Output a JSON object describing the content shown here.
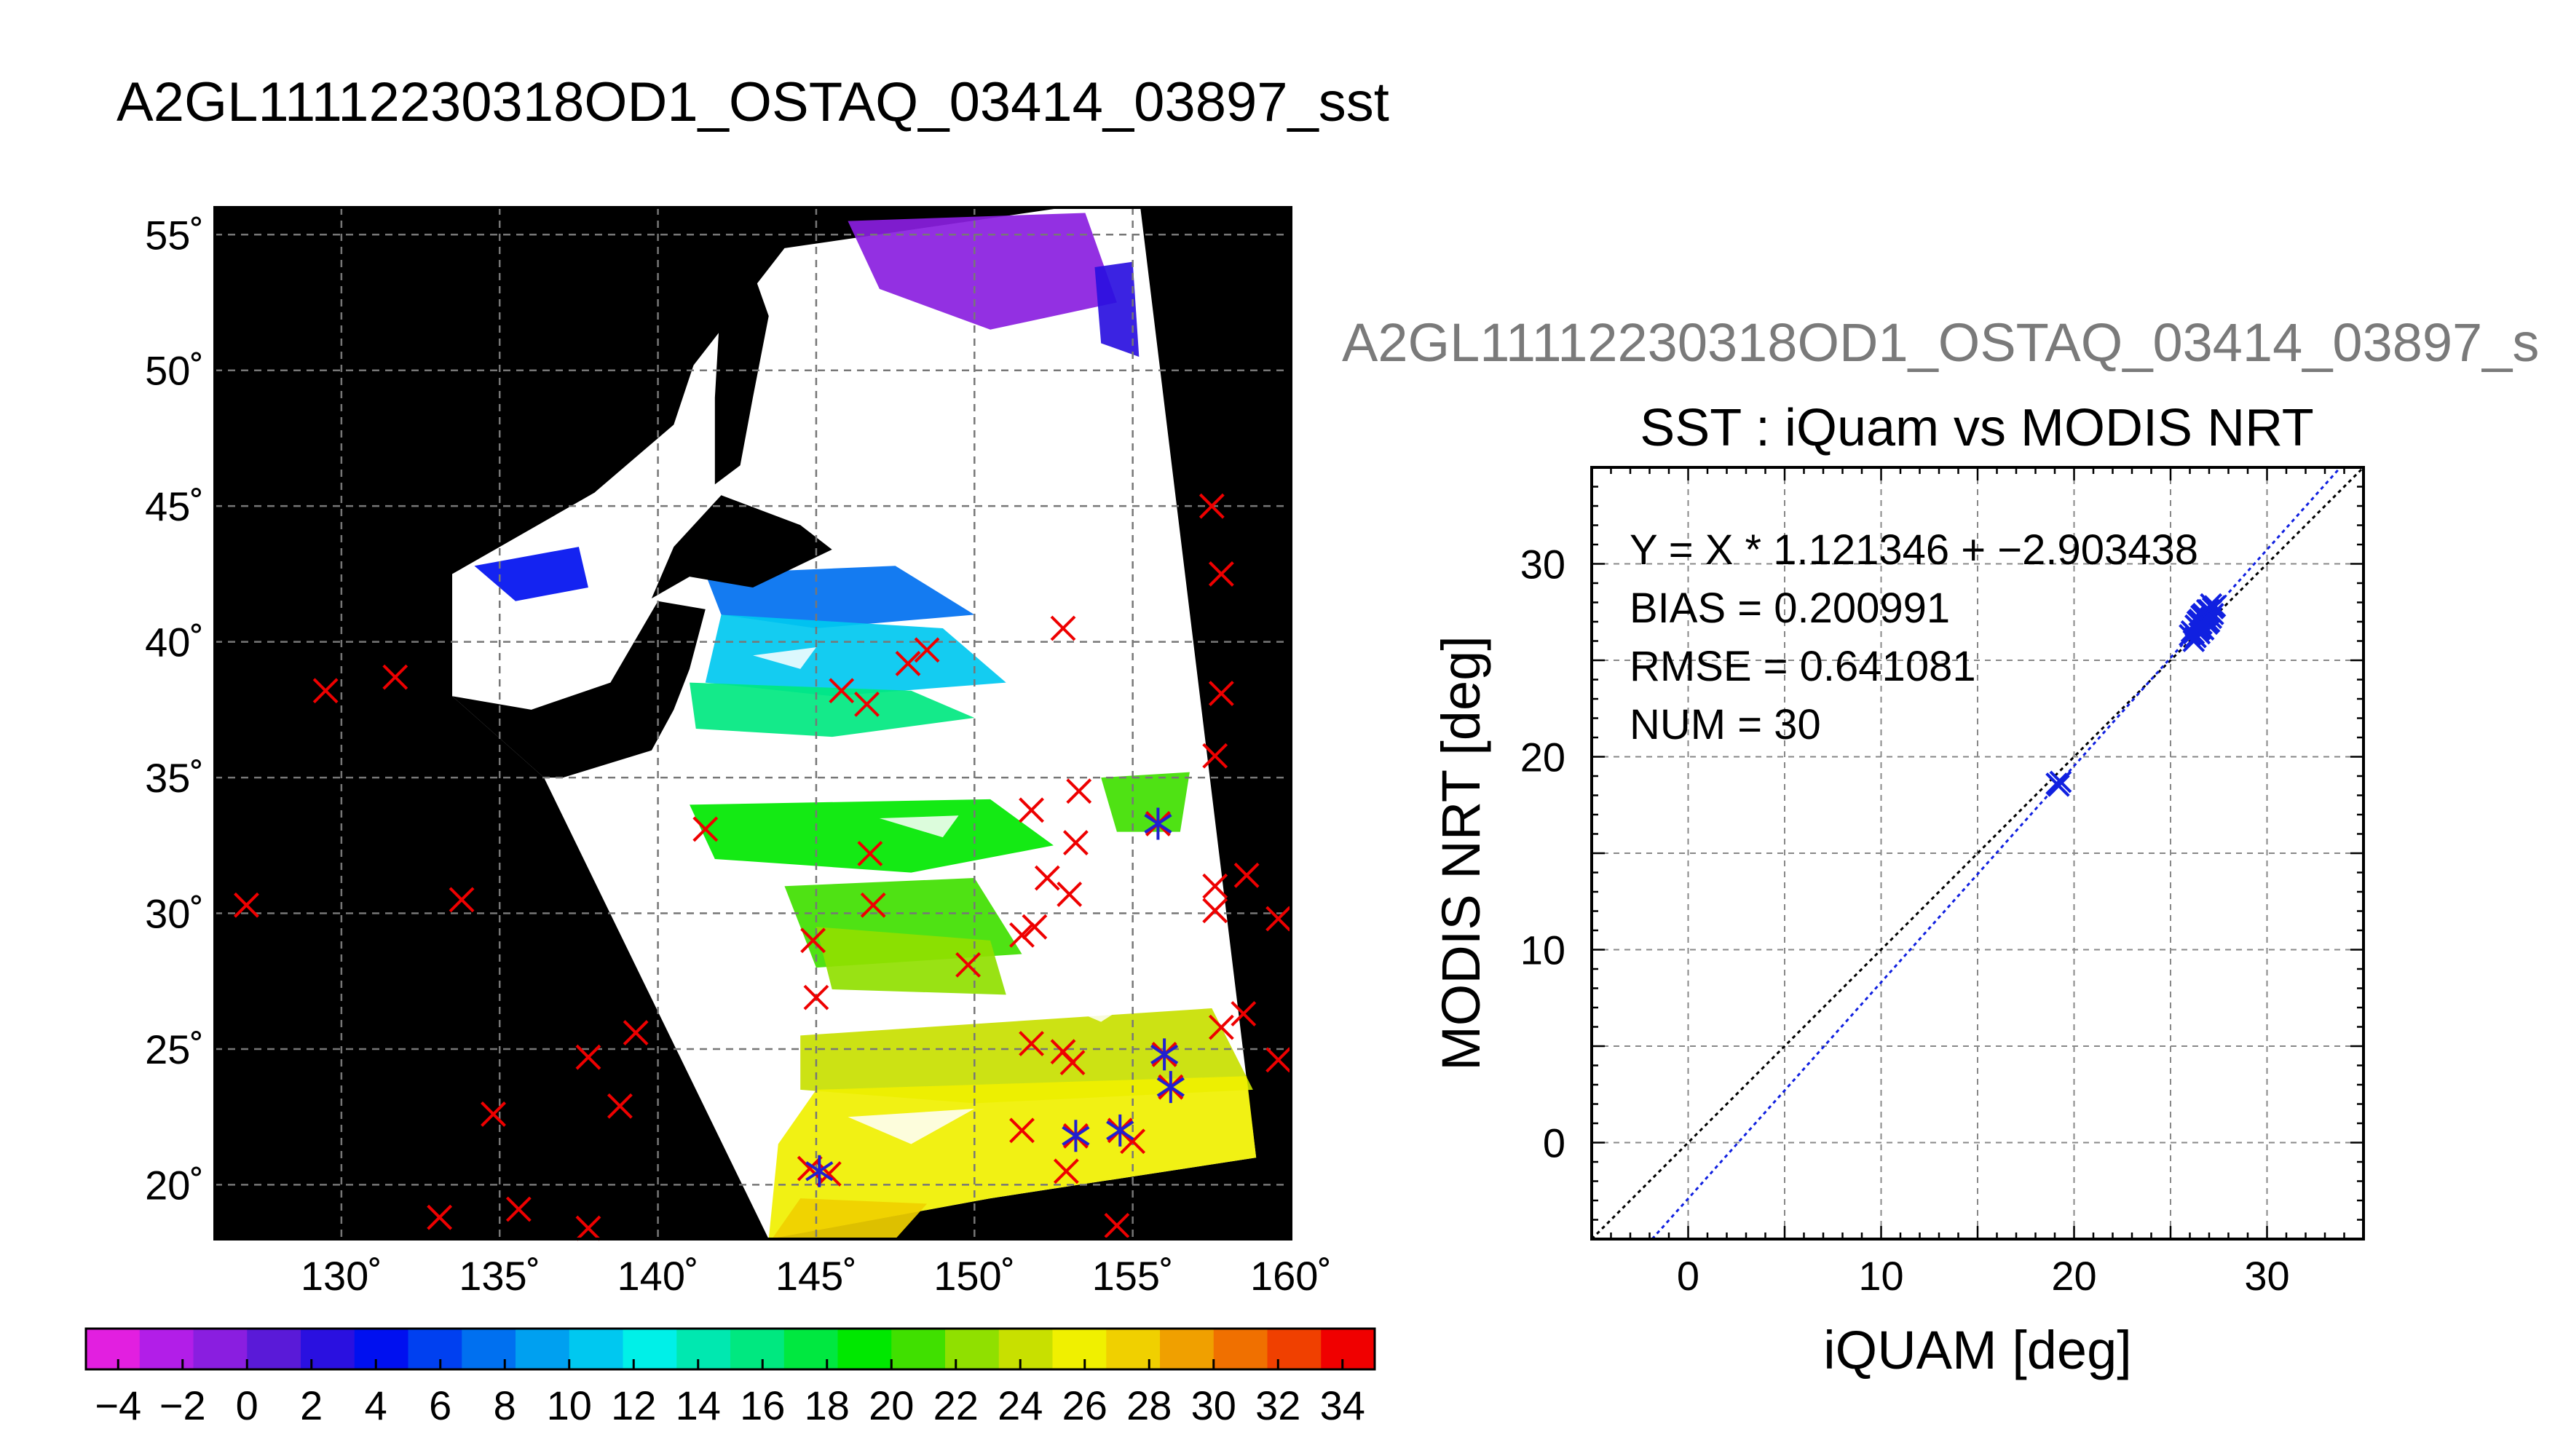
{
  "figure": {
    "main_title": "A2GL11112230318OD1_OSTAQ_03414_03897_sst",
    "scatter_header": "A2GL11112230318OD1_OSTAQ_03414_03897_s"
  },
  "chart_data": [
    {
      "type": "heatmap",
      "subtype": "map",
      "lon_ticks": [
        "130˚",
        "135˚",
        "140˚",
        "145˚",
        "150˚",
        "155˚",
        "160˚"
      ],
      "lat_ticks": [
        "55˚",
        "50˚",
        "45˚",
        "40˚",
        "35˚",
        "30˚",
        "25˚",
        "20˚"
      ],
      "xlim": [
        126,
        160
      ],
      "ylim": [
        18,
        56
      ],
      "grid": true,
      "colorbar": {
        "ticks": [
          "−4",
          "−2",
          "0",
          "2",
          "4",
          "6",
          "8",
          "10",
          "12",
          "14",
          "16",
          "18",
          "20",
          "22",
          "24",
          "26",
          "28",
          "30",
          "32",
          "34"
        ],
        "range": [
          -5,
          35
        ],
        "colors": [
          "#e21fe0",
          "#b21ee8",
          "#8a1ee0",
          "#5a1ad8",
          "#2a10e0",
          "#0010f0",
          "#0040f0",
          "#0070f0",
          "#00a0f0",
          "#00c8f0",
          "#00f0e8",
          "#00e8b0",
          "#00e880",
          "#00e840",
          "#00e800",
          "#40e000",
          "#90e000",
          "#c8e000",
          "#f0f000",
          "#f0d000",
          "#f0a000",
          "#f07000",
          "#f04000",
          "#f00000"
        ]
      },
      "in_situ_points": [
        [
          157.5,
          45
        ],
        [
          157.8,
          42.5
        ],
        [
          152.8,
          40.5
        ],
        [
          148.5,
          39.7
        ],
        [
          147.9,
          39.2
        ],
        [
          129.5,
          38.2
        ],
        [
          131.7,
          38.7
        ],
        [
          145.8,
          38.2
        ],
        [
          146.6,
          37.7
        ],
        [
          157.8,
          38.1
        ],
        [
          157.6,
          35.8
        ],
        [
          153.3,
          34.5
        ],
        [
          151.8,
          33.8
        ],
        [
          155.8,
          33.3
        ],
        [
          141.5,
          33.1
        ],
        [
          146.7,
          32.2
        ],
        [
          153.2,
          32.6
        ],
        [
          152.3,
          31.3
        ],
        [
          158.6,
          31.4
        ],
        [
          157.6,
          31.0
        ],
        [
          127.0,
          30.3
        ],
        [
          133.8,
          30.5
        ],
        [
          146.8,
          30.3
        ],
        [
          153.0,
          30.7
        ],
        [
          157.6,
          30.1
        ],
        [
          159.6,
          29.8
        ],
        [
          151.9,
          29.5
        ],
        [
          151.5,
          29.2
        ],
        [
          144.9,
          29.0
        ],
        [
          149.8,
          28.1
        ],
        [
          145.0,
          26.9
        ],
        [
          158.5,
          26.3
        ],
        [
          157.8,
          25.8
        ],
        [
          139.3,
          25.6
        ],
        [
          151.8,
          25.2
        ],
        [
          152.8,
          24.9
        ],
        [
          153.1,
          24.5
        ],
        [
          156.0,
          24.8
        ],
        [
          137.8,
          24.7
        ],
        [
          159.6,
          24.6
        ],
        [
          156.2,
          23.6
        ],
        [
          138.8,
          22.9
        ],
        [
          134.8,
          22.6
        ],
        [
          151.5,
          22.0
        ],
        [
          153.2,
          21.8
        ],
        [
          154.6,
          22.0
        ],
        [
          155.0,
          21.6
        ],
        [
          152.9,
          20.5
        ],
        [
          144.8,
          20.6
        ],
        [
          145.4,
          20.4
        ],
        [
          133.1,
          18.8
        ],
        [
          135.6,
          19.1
        ],
        [
          137.8,
          18.4
        ],
        [
          154.5,
          18.5
        ]
      ],
      "matched_points": [
        [
          155.8,
          33.3
        ],
        [
          156.0,
          24.8
        ],
        [
          156.2,
          23.6
        ],
        [
          153.2,
          21.8
        ],
        [
          154.6,
          22.0
        ],
        [
          145.1,
          20.5
        ]
      ],
      "land_labels": []
    },
    {
      "type": "scatter",
      "title": "SST : iQuam vs MODIS NRT",
      "xlabel": "iQUAM [deg]",
      "ylabel": "MODIS NRT [deg]",
      "xlim": [
        -5,
        35
      ],
      "ylim": [
        -5,
        35
      ],
      "x_ticks": [
        "0",
        "10",
        "20",
        "30"
      ],
      "y_ticks": [
        "0",
        "10",
        "20",
        "30"
      ],
      "grid": true,
      "stats": [
        "Y = X * 1.121346 + −2.903438",
        "BIAS = 0.200991",
        "RMSE = 0.641081",
        "NUM = 30"
      ],
      "fit": {
        "slope": 1.121346,
        "intercept": -2.903438
      },
      "points": [
        [
          19.1,
          18.6
        ],
        [
          19.2,
          18.5
        ],
        [
          19.3,
          18.7
        ],
        [
          26.0,
          26.3
        ],
        [
          26.2,
          26.0
        ],
        [
          26.3,
          26.8
        ],
        [
          26.4,
          27.0
        ],
        [
          26.5,
          26.4
        ],
        [
          26.6,
          27.3
        ],
        [
          26.7,
          26.6
        ],
        [
          26.8,
          27.1
        ],
        [
          26.9,
          26.9
        ],
        [
          27.0,
          27.5
        ],
        [
          27.1,
          27.2
        ],
        [
          27.2,
          27.7
        ],
        [
          26.1,
          26.5
        ],
        [
          26.3,
          26.2
        ],
        [
          26.5,
          27.1
        ],
        [
          26.7,
          27.4
        ],
        [
          26.9,
          27.6
        ],
        [
          27.0,
          27.0
        ],
        [
          27.2,
          27.4
        ],
        [
          27.3,
          27.8
        ],
        [
          26.4,
          26.7
        ],
        [
          26.6,
          26.9
        ],
        [
          26.8,
          27.3
        ],
        [
          27.0,
          27.6
        ],
        [
          26.2,
          26.4
        ],
        [
          26.5,
          26.6
        ],
        [
          27.1,
          27.9
        ]
      ],
      "colors": {
        "points": "#1020e0",
        "fit": "#1020e0",
        "one_to_one": "#000000"
      }
    }
  ]
}
